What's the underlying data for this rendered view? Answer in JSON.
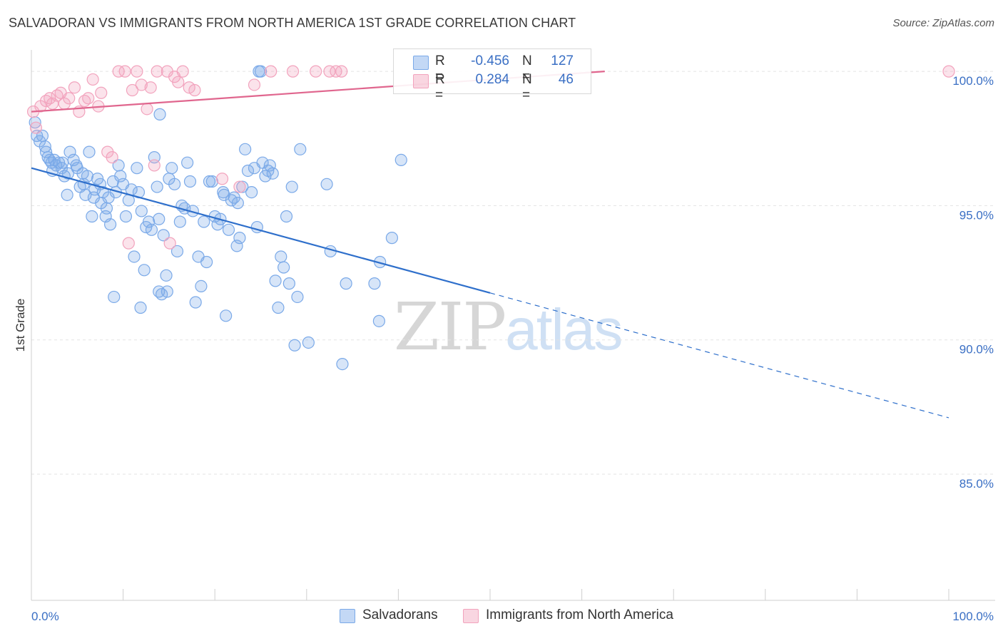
{
  "title": "SALVADORAN VS IMMIGRANTS FROM NORTH AMERICA 1ST GRADE CORRELATION CHART",
  "source": "Source: ZipAtlas.com",
  "watermark": {
    "part1": "ZIP",
    "part2": "atlas"
  },
  "legend": {
    "rows": [
      {
        "r_label": "R =",
        "r_value": "-0.456",
        "n_label": "N =",
        "n_value": "127",
        "color": "#7aa9e8"
      },
      {
        "r_label": "R =",
        "r_value": "0.284",
        "n_label": "N =",
        "n_value": "46",
        "color": "#f2a3bd"
      }
    ]
  },
  "bottom_legend": [
    {
      "label": "Salvadorans",
      "color": "#7aa9e8"
    },
    {
      "label": "Immigrants from North America",
      "color": "#f2a3bd"
    }
  ],
  "chart_data": {
    "type": "scatter",
    "title": "SALVADORAN VS IMMIGRANTS FROM NORTH AMERICA 1ST GRADE CORRELATION CHART",
    "xlabel": "",
    "ylabel": "1st Grade",
    "xlim": [
      0,
      100
    ],
    "ylim": [
      80.3,
      100.8
    ],
    "x_tick_labels": [
      "0.0%",
      "100.0%"
    ],
    "y_ticks": [
      85,
      90,
      95,
      100
    ],
    "y_tick_labels": [
      "85.0%",
      "90.0%",
      "95.0%",
      "100.0%"
    ],
    "series": [
      {
        "name": "Salvadorans",
        "color": "#7aa9e8",
        "line_color": "#2e6fcb",
        "trend": {
          "x0": 0,
          "y0": 96.4,
          "x1": 50,
          "y1": 91.75,
          "dash_to_x": 100,
          "dash_to_y": 87.1
        },
        "points": [
          [
            0.4,
            98.1
          ],
          [
            0.6,
            97.6
          ],
          [
            1.2,
            97.6
          ],
          [
            1.5,
            97.2
          ],
          [
            1.8,
            96.8
          ],
          [
            2.2,
            96.6
          ],
          [
            2.5,
            96.7
          ],
          [
            2.7,
            96.5
          ],
          [
            3.0,
            96.6
          ],
          [
            3.3,
            96.4
          ],
          [
            3.6,
            96.1
          ],
          [
            3.9,
            95.4
          ],
          [
            4.2,
            97.0
          ],
          [
            4.6,
            96.7
          ],
          [
            5.0,
            96.4
          ],
          [
            5.3,
            95.7
          ],
          [
            5.6,
            96.2
          ],
          [
            5.9,
            95.4
          ],
          [
            6.1,
            96.1
          ],
          [
            6.3,
            97.0
          ],
          [
            6.6,
            94.6
          ],
          [
            6.9,
            95.6
          ],
          [
            7.2,
            96.0
          ],
          [
            7.5,
            95.8
          ],
          [
            7.8,
            95.5
          ],
          [
            8.1,
            94.6
          ],
          [
            8.4,
            95.3
          ],
          [
            8.6,
            94.3
          ],
          [
            8.9,
            95.9
          ],
          [
            9.2,
            95.5
          ],
          [
            9.5,
            96.5
          ],
          [
            9.7,
            96.1
          ],
          [
            10.0,
            95.8
          ],
          [
            10.3,
            94.6
          ],
          [
            10.6,
            95.2
          ],
          [
            10.9,
            95.6
          ],
          [
            11.2,
            93.1
          ],
          [
            11.5,
            96.4
          ],
          [
            11.7,
            95.5
          ],
          [
            12.0,
            94.8
          ],
          [
            12.3,
            92.6
          ],
          [
            12.5,
            94.2
          ],
          [
            12.8,
            94.4
          ],
          [
            13.1,
            94.1
          ],
          [
            13.4,
            96.8
          ],
          [
            13.7,
            95.7
          ],
          [
            13.9,
            94.5
          ],
          [
            14.2,
            91.7
          ],
          [
            14.4,
            93.9
          ],
          [
            14.7,
            92.4
          ],
          [
            15.0,
            96.0
          ],
          [
            15.3,
            96.4
          ],
          [
            15.6,
            95.8
          ],
          [
            15.9,
            93.3
          ],
          [
            16.2,
            94.4
          ],
          [
            16.4,
            95.0
          ],
          [
            16.7,
            94.9
          ],
          [
            17.0,
            96.6
          ],
          [
            17.3,
            95.9
          ],
          [
            17.6,
            94.8
          ],
          [
            17.9,
            91.4
          ],
          [
            18.2,
            93.1
          ],
          [
            18.5,
            92.0
          ],
          [
            18.8,
            94.4
          ],
          [
            19.1,
            92.9
          ],
          [
            19.4,
            95.9
          ],
          [
            19.7,
            95.9
          ],
          [
            20.0,
            94.6
          ],
          [
            20.3,
            94.3
          ],
          [
            20.6,
            94.5
          ],
          [
            20.9,
            95.5
          ],
          [
            21.2,
            90.9
          ],
          [
            21.5,
            94.1
          ],
          [
            21.8,
            95.2
          ],
          [
            22.1,
            95.3
          ],
          [
            22.4,
            93.5
          ],
          [
            22.7,
            93.8
          ],
          [
            23.0,
            95.7
          ],
          [
            23.3,
            97.1
          ],
          [
            23.6,
            96.3
          ],
          [
            24.0,
            95.5
          ],
          [
            24.3,
            96.4
          ],
          [
            24.6,
            94.2
          ],
          [
            25.0,
            100.0
          ],
          [
            25.2,
            96.6
          ],
          [
            25.5,
            96.1
          ],
          [
            25.8,
            96.3
          ],
          [
            26.0,
            96.5
          ],
          [
            26.3,
            96.2
          ],
          [
            26.6,
            92.2
          ],
          [
            26.9,
            91.2
          ],
          [
            27.2,
            93.1
          ],
          [
            27.5,
            92.7
          ],
          [
            27.8,
            94.6
          ],
          [
            28.1,
            92.1
          ],
          [
            28.4,
            95.7
          ],
          [
            28.7,
            89.8
          ],
          [
            29.0,
            91.6
          ],
          [
            29.3,
            97.1
          ],
          [
            30.2,
            89.9
          ],
          [
            32.2,
            95.8
          ],
          [
            32.6,
            93.3
          ],
          [
            33.9,
            89.1
          ],
          [
            34.3,
            92.1
          ],
          [
            37.4,
            92.1
          ],
          [
            37.9,
            90.7
          ],
          [
            38.0,
            92.9
          ],
          [
            39.3,
            93.8
          ],
          [
            40.3,
            96.7
          ],
          [
            14.8,
            91.8
          ],
          [
            11.9,
            91.2
          ],
          [
            9.0,
            91.6
          ],
          [
            13.9,
            91.8
          ],
          [
            0.9,
            97.4
          ],
          [
            1.6,
            97.0
          ],
          [
            2.0,
            96.7
          ],
          [
            2.3,
            96.3
          ],
          [
            3.4,
            96.6
          ],
          [
            4.0,
            96.2
          ],
          [
            4.9,
            96.5
          ],
          [
            5.7,
            95.8
          ],
          [
            6.8,
            95.3
          ],
          [
            7.6,
            95.1
          ],
          [
            8.2,
            94.9
          ],
          [
            14.0,
            98.4
          ],
          [
            24.8,
            100.0
          ],
          [
            22.5,
            95.1
          ],
          [
            21.0,
            95.4
          ]
        ]
      },
      {
        "name": "Immigrants from North America",
        "color": "#f2a3bd",
        "line_color": "#e0668e",
        "trend": {
          "x0": 0,
          "y0": 98.5,
          "x1": 62.5,
          "y1": 100.0
        },
        "points": [
          [
            0.2,
            98.5
          ],
          [
            0.5,
            97.9
          ],
          [
            1.0,
            98.7
          ],
          [
            1.6,
            98.9
          ],
          [
            2.0,
            99.0
          ],
          [
            2.3,
            98.8
          ],
          [
            2.8,
            99.1
          ],
          [
            3.2,
            99.2
          ],
          [
            3.6,
            98.8
          ],
          [
            4.1,
            99.0
          ],
          [
            4.7,
            99.4
          ],
          [
            5.2,
            98.5
          ],
          [
            5.8,
            98.9
          ],
          [
            6.2,
            99.0
          ],
          [
            6.7,
            99.7
          ],
          [
            7.3,
            98.7
          ],
          [
            7.6,
            99.2
          ],
          [
            8.3,
            97.0
          ],
          [
            8.8,
            96.8
          ],
          [
            9.5,
            100.0
          ],
          [
            10.2,
            100.0
          ],
          [
            10.6,
            93.6
          ],
          [
            11.0,
            99.3
          ],
          [
            11.5,
            100.0
          ],
          [
            12.0,
            99.5
          ],
          [
            12.6,
            98.6
          ],
          [
            13.0,
            99.4
          ],
          [
            13.4,
            96.5
          ],
          [
            13.7,
            100.0
          ],
          [
            14.8,
            100.0
          ],
          [
            15.1,
            93.6
          ],
          [
            15.6,
            99.8
          ],
          [
            16.0,
            99.6
          ],
          [
            16.5,
            100.0
          ],
          [
            17.2,
            99.4
          ],
          [
            17.8,
            99.3
          ],
          [
            20.8,
            96.0
          ],
          [
            22.7,
            95.7
          ],
          [
            24.3,
            99.5
          ],
          [
            26.1,
            100.0
          ],
          [
            28.5,
            100.0
          ],
          [
            31.0,
            100.0
          ],
          [
            32.5,
            100.0
          ],
          [
            33.2,
            100.0
          ],
          [
            33.8,
            100.0
          ],
          [
            100,
            100.0
          ]
        ]
      }
    ]
  }
}
